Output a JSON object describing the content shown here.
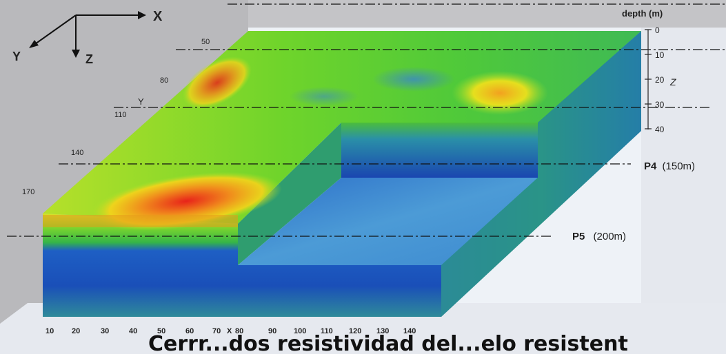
{
  "axes": {
    "x_label": "X",
    "y_label": "Y",
    "z_label": "Z",
    "depth_title": "depth (m)",
    "depth_ticks": [
      "0",
      "10",
      "20",
      "30",
      "40"
    ],
    "depth_z_label": "Z",
    "y_inline_label": "Y",
    "x_inline_label": "X",
    "y_ticks": [
      "50",
      "80",
      "110",
      "140",
      "170"
    ],
    "x_ticks": [
      "10",
      "20",
      "30",
      "40",
      "50",
      "60",
      "70",
      "80",
      "90",
      "100",
      "110",
      "120",
      "130",
      "140"
    ]
  },
  "profiles": [
    {
      "name": "P4",
      "distance": "(150m)"
    },
    {
      "name": "P5",
      "distance": "(200m)"
    }
  ],
  "caption": "Cerrr...dos resistividad del...elo resistent",
  "colors": {
    "high": "#e8231a",
    "mid_high": "#f6d31a",
    "mid": "#62d12a",
    "low": "#1f5fc6",
    "lowest": "#1530a8"
  }
}
